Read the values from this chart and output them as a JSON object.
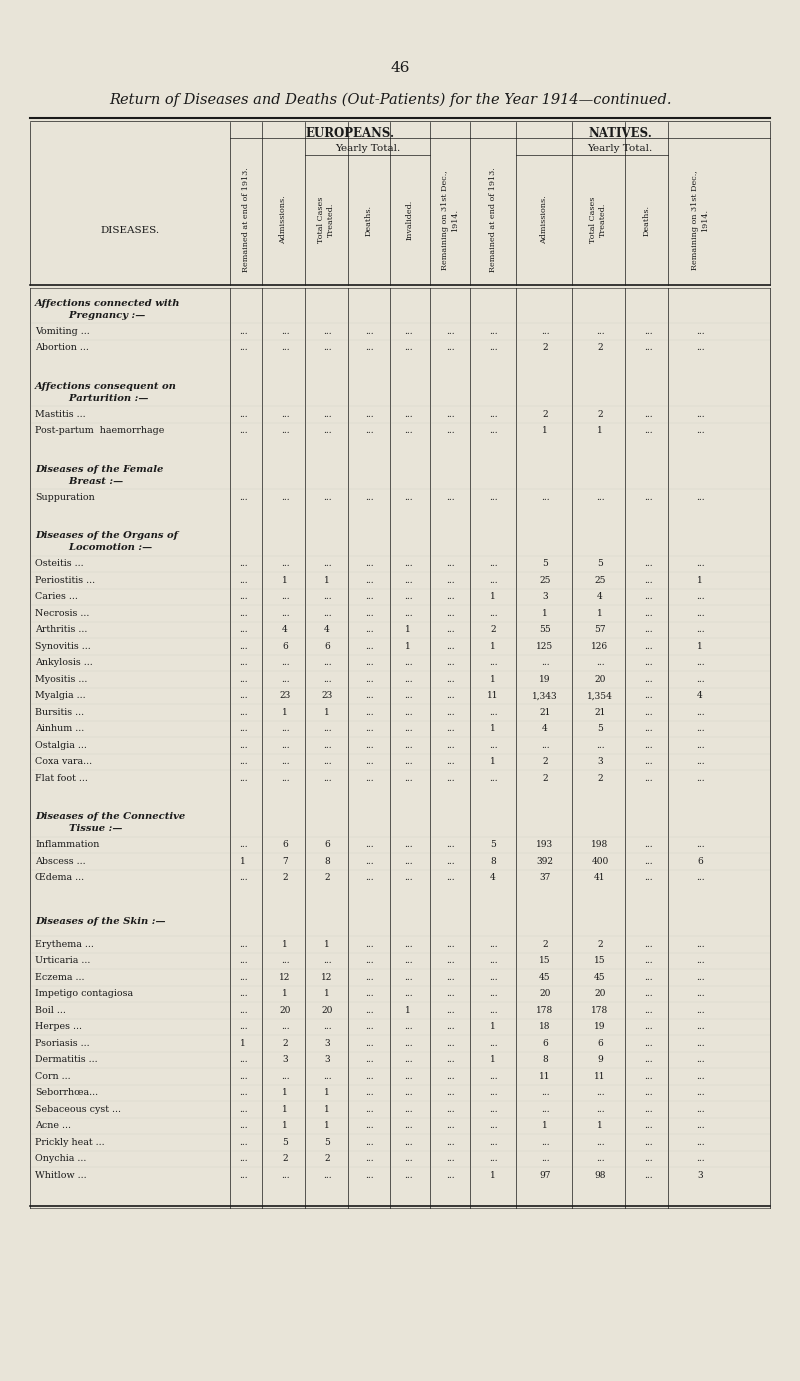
{
  "page_number": "46",
  "title": "Return of Diseases and Deaths (Out-Patients) for the Year 1914—continued.",
  "background_color": "#e8e4d8",
  "text_color": "#1a1a1a",
  "europeans_header": "EUROPEANS.",
  "natives_header": "NATIVES.",
  "yearly_total_label": "Yearly Total.",
  "col_headers": [
    "Remained at end of 1913.",
    "Admissions.",
    "Total Cases Treated.",
    "Deaths.",
    "Invalided.",
    "Remaining on 31st Dec., 1914.",
    "Remained at end of 1913.",
    "Admissions.",
    "Total Cases Treated.",
    "Deaths.",
    "Remaining on 31st Dec., 1914."
  ],
  "diseases_col_header": "DISEASES.",
  "sections": [
    {
      "heading": "Affections connected with\n    Pregnancy :—",
      "rows": [
        {
          "name": "Vomiting ...",
          "E_rem13": "...",
          "E_adm": "...",
          "E_tot": "...",
          "E_dth": "...",
          "E_inv": "...",
          "E_rem14": "...",
          "N_rem13": "...",
          "N_adm": "...",
          "N_tot": "...",
          "N_dth": "...",
          "N_rem14": "..."
        },
        {
          "name": "Abortion ...",
          "E_rem13": "...",
          "E_adm": "...",
          "E_tot": "...",
          "E_dth": "...",
          "E_inv": "...",
          "E_rem14": "...",
          "N_rem13": "...",
          "N_adm": "2",
          "N_tot": "2",
          "N_dth": "...",
          "N_rem14": "..."
        }
      ]
    },
    {
      "heading": "Affections consequent on\n    Parturition :—",
      "rows": [
        {
          "name": "Mastitis ...",
          "E_rem13": "...",
          "E_adm": "...",
          "E_tot": "...",
          "E_dth": "...",
          "E_inv": "...",
          "E_rem14": "...",
          "N_rem13": "...",
          "N_adm": "2",
          "N_tot": "2",
          "N_dth": "...",
          "N_rem14": "..."
        },
        {
          "name": "Post-partum  haemorrhage",
          "E_rem13": "...",
          "E_adm": "...",
          "E_tot": "...",
          "E_dth": "...",
          "E_inv": "...",
          "E_rem14": "...",
          "N_rem13": "...",
          "N_adm": "1",
          "N_tot": "1",
          "N_dth": "...",
          "N_rem14": "..."
        }
      ]
    },
    {
      "heading": "Diseases of the Female\n    Breast :—",
      "rows": [
        {
          "name": "Suppuration",
          "E_rem13": "...",
          "E_adm": "...",
          "E_tot": "...",
          "E_dth": "...",
          "E_inv": "...",
          "E_rem14": "...",
          "N_rem13": "...",
          "N_adm": "...",
          "N_tot": "...",
          "N_dth": "...",
          "N_rem14": "..."
        }
      ]
    },
    {
      "heading": "Diseases of the Organs of\n    Locomotion :—",
      "rows": [
        {
          "name": "Osteitis ...",
          "E_rem13": "...",
          "E_adm": "...",
          "E_tot": "...",
          "E_dth": "...",
          "E_inv": "...",
          "E_rem14": "...",
          "N_rem13": "...",
          "N_adm": "5",
          "N_tot": "5",
          "N_dth": "...",
          "N_rem14": "..."
        },
        {
          "name": "Periostitis ...",
          "E_rem13": "...",
          "E_adm": "1",
          "E_tot": "1",
          "E_dth": "...",
          "E_inv": "...",
          "E_rem14": "...",
          "N_rem13": "...",
          "N_adm": "25",
          "N_tot": "25",
          "N_dth": "...",
          "N_rem14": "1"
        },
        {
          "name": "Caries ...",
          "E_rem13": "...",
          "E_adm": "...",
          "E_tot": "...",
          "E_dth": "...",
          "E_inv": "...",
          "E_rem14": "...",
          "N_rem13": "1",
          "N_adm": "3",
          "N_tot": "4",
          "N_dth": "...",
          "N_rem14": "..."
        },
        {
          "name": "Necrosis ...",
          "E_rem13": "...",
          "E_adm": "...",
          "E_tot": "...",
          "E_dth": "...",
          "E_inv": "...",
          "E_rem14": "...",
          "N_rem13": "...",
          "N_adm": "1",
          "N_tot": "1",
          "N_dth": "...",
          "N_rem14": "..."
        },
        {
          "name": "Arthritis ...",
          "E_rem13": "...",
          "E_adm": "4",
          "E_tot": "4",
          "E_dth": "...",
          "E_inv": "1",
          "E_rem14": "...",
          "N_rem13": "2",
          "N_adm": "55",
          "N_tot": "57",
          "N_dth": "...",
          "N_rem14": "..."
        },
        {
          "name": "Synovitis ...",
          "E_rem13": "...",
          "E_adm": "6",
          "E_tot": "6",
          "E_dth": "...",
          "E_inv": "1",
          "E_rem14": "...",
          "N_rem13": "1",
          "N_adm": "125",
          "N_tot": "126",
          "N_dth": "...",
          "N_rem14": "1"
        },
        {
          "name": "Ankylosis ...",
          "E_rem13": "...",
          "E_adm": "...",
          "E_tot": "...",
          "E_dth": "...",
          "E_inv": "...",
          "E_rem14": "...",
          "N_rem13": "...",
          "N_adm": "...",
          "N_tot": "...",
          "N_dth": "...",
          "N_rem14": "..."
        },
        {
          "name": "Myositis ...",
          "E_rem13": "...",
          "E_adm": "...",
          "E_tot": "...",
          "E_dth": "...",
          "E_inv": "...",
          "E_rem14": "...",
          "N_rem13": "1",
          "N_adm": "19",
          "N_tot": "20",
          "N_dth": "...",
          "N_rem14": "..."
        },
        {
          "name": "Myalgia ...",
          "E_rem13": "...",
          "E_adm": "23",
          "E_tot": "23",
          "E_dth": "...",
          "E_inv": "...",
          "E_rem14": "...",
          "N_rem13": "11",
          "N_adm": "1,343",
          "N_tot": "1,354",
          "N_dth": "...",
          "N_rem14": "4"
        },
        {
          "name": "Bursitis ...",
          "E_rem13": "...",
          "E_adm": "1",
          "E_tot": "1",
          "E_dth": "...",
          "E_inv": "...",
          "E_rem14": "...",
          "N_rem13": "...",
          "N_adm": "21",
          "N_tot": "21",
          "N_dth": "...",
          "N_rem14": "..."
        },
        {
          "name": "Ainhum ...",
          "E_rem13": "...",
          "E_adm": "...",
          "E_tot": "...",
          "E_dth": "...",
          "E_inv": "...",
          "E_rem14": "...",
          "N_rem13": "1",
          "N_adm": "4",
          "N_tot": "5",
          "N_dth": "...",
          "N_rem14": "..."
        },
        {
          "name": "Ostalgia ...",
          "E_rem13": "...",
          "E_adm": "...",
          "E_tot": "...",
          "E_dth": "...",
          "E_inv": "...",
          "E_rem14": "...",
          "N_rem13": "...",
          "N_adm": "...",
          "N_tot": "...",
          "N_dth": "...",
          "N_rem14": "..."
        },
        {
          "name": "Coxa vara...",
          "E_rem13": "...",
          "E_adm": "...",
          "E_tot": "...",
          "E_dth": "...",
          "E_inv": "...",
          "E_rem14": "...",
          "N_rem13": "1",
          "N_adm": "2",
          "N_tot": "3",
          "N_dth": "...",
          "N_rem14": "..."
        },
        {
          "name": "Flat foot ...",
          "E_rem13": "...",
          "E_adm": "...",
          "E_tot": "...",
          "E_dth": "...",
          "E_inv": "...",
          "E_rem14": "...",
          "N_rem13": "...",
          "N_adm": "2",
          "N_tot": "2",
          "N_dth": "...",
          "N_rem14": "..."
        }
      ]
    },
    {
      "heading": "Diseases of the Connective\n    Tissue :—",
      "rows": [
        {
          "name": "Inflammation",
          "E_rem13": "...",
          "E_adm": "6",
          "E_tot": "6",
          "E_dth": "...",
          "E_inv": "...",
          "E_rem14": "...",
          "N_rem13": "5",
          "N_adm": "193",
          "N_tot": "198",
          "N_dth": "...",
          "N_rem14": "..."
        },
        {
          "name": "Abscess ...",
          "E_rem13": "1",
          "E_adm": "7",
          "E_tot": "8",
          "E_dth": "...",
          "E_inv": "...",
          "E_rem14": "...",
          "N_rem13": "8",
          "N_adm": "392",
          "N_tot": "400",
          "N_dth": "...",
          "N_rem14": "6"
        },
        {
          "name": "Œdema ...",
          "E_rem13": "...",
          "E_adm": "2",
          "E_tot": "2",
          "E_dth": "...",
          "E_inv": "...",
          "E_rem14": "...",
          "N_rem13": "4",
          "N_adm": "37",
          "N_tot": "41",
          "N_dth": "...",
          "N_rem14": "..."
        }
      ]
    },
    {
      "heading": "Diseases of the Skin :—",
      "rows": [
        {
          "name": "Erythema ...",
          "E_rem13": "...",
          "E_adm": "1",
          "E_tot": "1",
          "E_dth": "...",
          "E_inv": "...",
          "E_rem14": "...",
          "N_rem13": "...",
          "N_adm": "2",
          "N_tot": "2",
          "N_dth": "...",
          "N_rem14": "..."
        },
        {
          "name": "Urticaria ...",
          "E_rem13": "...",
          "E_adm": "...",
          "E_tot": "...",
          "E_dth": "...",
          "E_inv": "...",
          "E_rem14": "...",
          "N_rem13": "...",
          "N_adm": "15",
          "N_tot": "15",
          "N_dth": "...",
          "N_rem14": "..."
        },
        {
          "name": "Eczema ...",
          "E_rem13": "...",
          "E_adm": "12",
          "E_tot": "12",
          "E_dth": "...",
          "E_inv": "...",
          "E_rem14": "...",
          "N_rem13": "...",
          "N_adm": "45",
          "N_tot": "45",
          "N_dth": "...",
          "N_rem14": "..."
        },
        {
          "name": "Impetigo contagiosa",
          "E_rem13": "...",
          "E_adm": "1",
          "E_tot": "1",
          "E_dth": "...",
          "E_inv": "...",
          "E_rem14": "...",
          "N_rem13": "...",
          "N_adm": "20",
          "N_tot": "20",
          "N_dth": "...",
          "N_rem14": "..."
        },
        {
          "name": "Boil ...",
          "E_rem13": "...",
          "E_adm": "20",
          "E_tot": "20",
          "E_dth": "...",
          "E_inv": "1",
          "E_rem14": "...",
          "N_rem13": "...",
          "N_adm": "178",
          "N_tot": "178",
          "N_dth": "...",
          "N_rem14": "..."
        },
        {
          "name": "Herpes ...",
          "E_rem13": "...",
          "E_adm": "...",
          "E_tot": "...",
          "E_dth": "...",
          "E_inv": "...",
          "E_rem14": "...",
          "N_rem13": "1",
          "N_adm": "18",
          "N_tot": "19",
          "N_dth": "...",
          "N_rem14": "..."
        },
        {
          "name": "Psoriasis ...",
          "E_rem13": "1",
          "E_adm": "2",
          "E_tot": "3",
          "E_dth": "...",
          "E_inv": "...",
          "E_rem14": "...",
          "N_rem13": "...",
          "N_adm": "6",
          "N_tot": "6",
          "N_dth": "...",
          "N_rem14": "..."
        },
        {
          "name": "Dermatitis ...",
          "E_rem13": "...",
          "E_adm": "3",
          "E_tot": "3",
          "E_dth": "...",
          "E_inv": "...",
          "E_rem14": "...",
          "N_rem13": "1",
          "N_adm": "8",
          "N_tot": "9",
          "N_dth": "...",
          "N_rem14": "..."
        },
        {
          "name": "Corn ...",
          "E_rem13": "...",
          "E_adm": "...",
          "E_tot": "...",
          "E_dth": "...",
          "E_inv": "...",
          "E_rem14": "...",
          "N_rem13": "...",
          "N_adm": "11",
          "N_tot": "11",
          "N_dth": "...",
          "N_rem14": "..."
        },
        {
          "name": "Seborrhœa...",
          "E_rem13": "...",
          "E_adm": "1",
          "E_tot": "1",
          "E_dth": "...",
          "E_inv": "...",
          "E_rem14": "...",
          "N_rem13": "...",
          "N_adm": "...",
          "N_tot": "...",
          "N_dth": "...",
          "N_rem14": "..."
        },
        {
          "name": "Sebaceous cyst ...",
          "E_rem13": "...",
          "E_adm": "1",
          "E_tot": "1",
          "E_dth": "...",
          "E_inv": "...",
          "E_rem14": "...",
          "N_rem13": "...",
          "N_adm": "...",
          "N_tot": "...",
          "N_dth": "...",
          "N_rem14": "..."
        },
        {
          "name": "Acne ...",
          "E_rem13": "...",
          "E_adm": "1",
          "E_tot": "1",
          "E_dth": "...",
          "E_inv": "...",
          "E_rem14": "...",
          "N_rem13": "...",
          "N_adm": "1",
          "N_tot": "1",
          "N_dth": "...",
          "N_rem14": "..."
        },
        {
          "name": "Prickly heat ...",
          "E_rem13": "...",
          "E_adm": "5",
          "E_tot": "5",
          "E_dth": "...",
          "E_inv": "...",
          "E_rem14": "...",
          "N_rem13": "...",
          "N_adm": "...",
          "N_tot": "...",
          "N_dth": "...",
          "N_rem14": "..."
        },
        {
          "name": "Onychia ...",
          "E_rem13": "...",
          "E_adm": "2",
          "E_tot": "2",
          "E_dth": "...",
          "E_inv": "...",
          "E_rem14": "...",
          "N_rem13": "...",
          "N_adm": "...",
          "N_tot": "...",
          "N_dth": "...",
          "N_rem14": "..."
        },
        {
          "name": "Whitlow ...",
          "E_rem13": "...",
          "E_adm": "...",
          "E_tot": "...",
          "E_dth": "...",
          "E_inv": "...",
          "E_rem14": "...",
          "N_rem13": "1",
          "N_adm": "97",
          "N_tot": "98",
          "N_dth": "...",
          "N_rem14": "3"
        }
      ]
    }
  ]
}
